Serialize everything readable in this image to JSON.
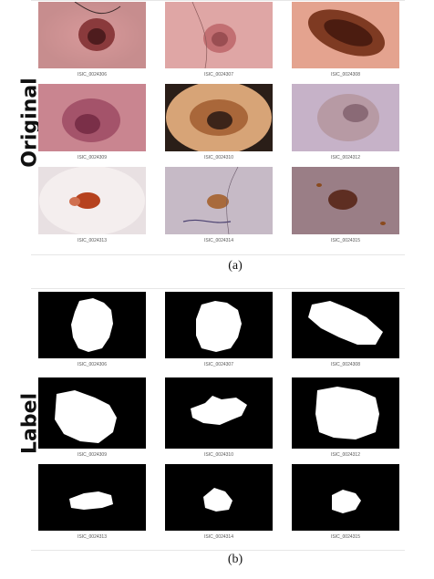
{
  "panel_a": {
    "side_label": "Original",
    "caption": "(a)",
    "tiles": [
      {
        "id": "ISIC_0024306"
      },
      {
        "id": "ISIC_0024307"
      },
      {
        "id": "ISIC_0024308"
      },
      {
        "id": "ISIC_0024309"
      },
      {
        "id": "ISIC_0024310"
      },
      {
        "id": "ISIC_0024312"
      },
      {
        "id": "ISIC_0024313"
      },
      {
        "id": "ISIC_0024314"
      },
      {
        "id": "ISIC_0024315"
      }
    ]
  },
  "panel_b": {
    "side_label": "Label",
    "caption": "(b)",
    "tiles": [
      {
        "id": "ISIC_0024306"
      },
      {
        "id": "ISIC_0024307"
      },
      {
        "id": "ISIC_0024308"
      },
      {
        "id": "ISIC_0024309"
      },
      {
        "id": "ISIC_0024310"
      },
      {
        "id": "ISIC_0024312"
      },
      {
        "id": "ISIC_0024313"
      },
      {
        "id": "ISIC_0024314"
      },
      {
        "id": "ISIC_0024315"
      }
    ]
  },
  "colors": {
    "mask_background": "#000000",
    "mask_foreground": "#ffffff",
    "skin_pink": "#d99a9c",
    "lesion_brown": "#6b2a1f"
  }
}
